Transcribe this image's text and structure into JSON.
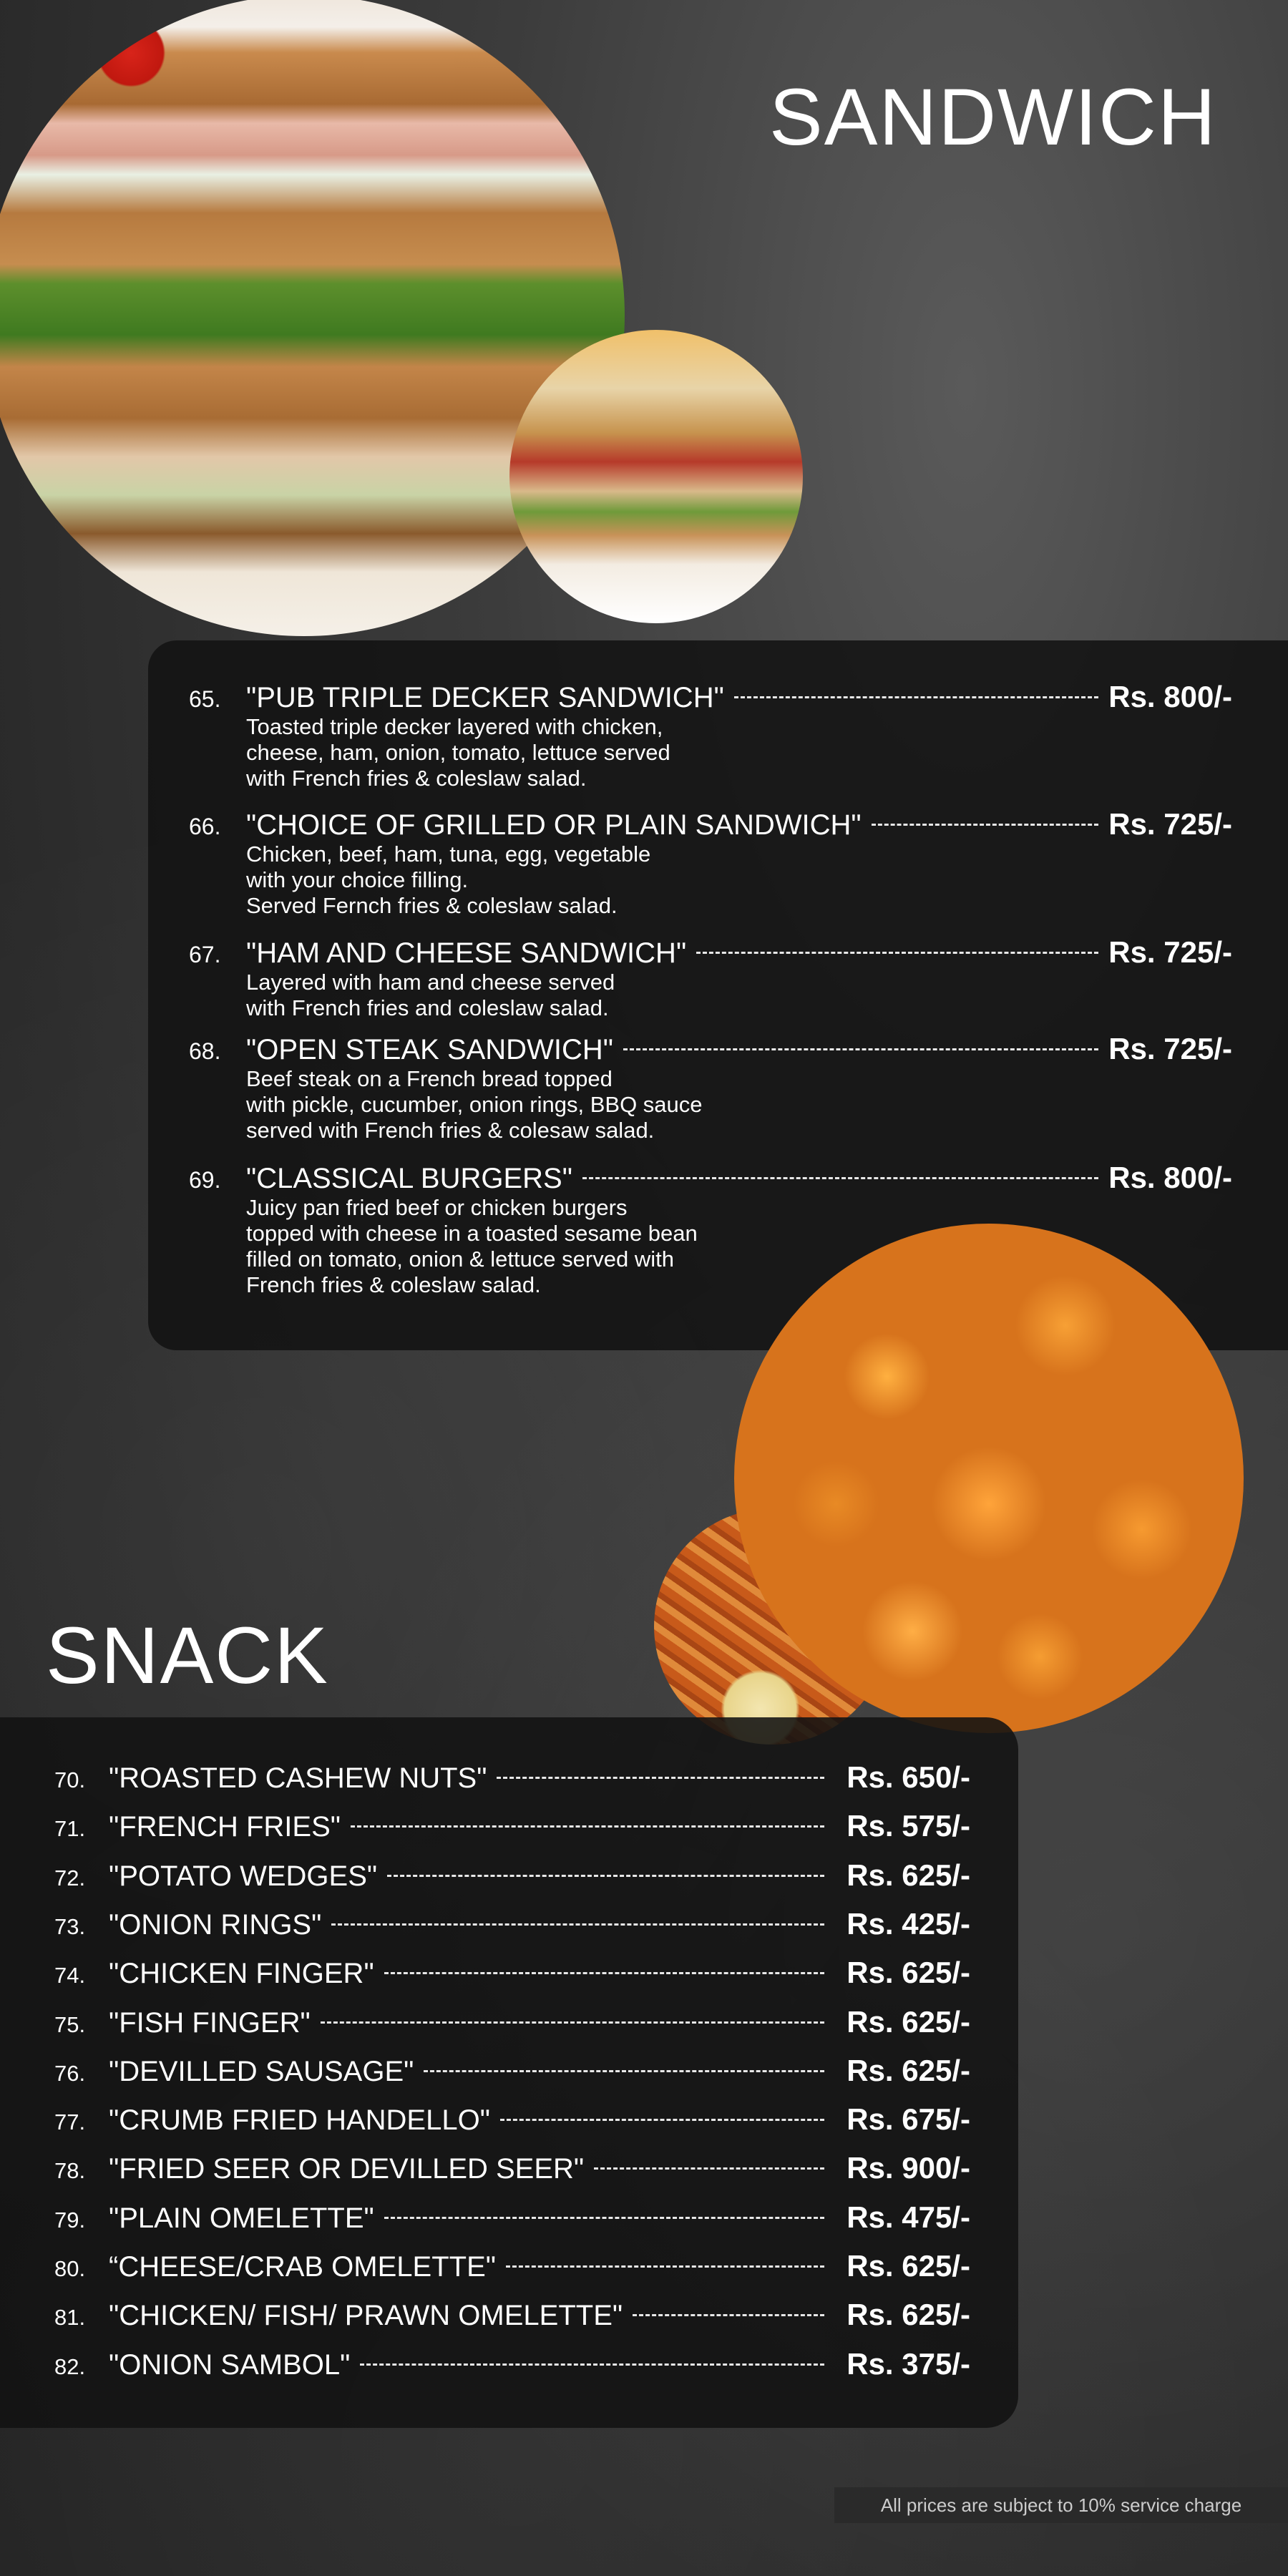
{
  "sandwich": {
    "title": "SANDWICH",
    "items": [
      {
        "num": "65.",
        "name": "\"PUB TRIPLE DECKER SANDWICH\"",
        "price": "Rs. 800/-",
        "desc": "Toasted triple decker layered with chicken,\ncheese, ham, onion, tomato, lettuce served\nwith French fries & coleslaw salad."
      },
      {
        "num": "66.",
        "name": "\"CHOICE OF GRILLED OR PLAIN SANDWICH\"",
        "price": "Rs. 725/-",
        "desc": "Chicken, beef, ham, tuna, egg, vegetable\nwith your choice filling.\nServed Fernch fries & coleslaw salad."
      },
      {
        "num": "67.",
        "name": "\"HAM AND CHEESE SANDWICH\"",
        "price": "Rs. 725/-",
        "desc": "Layered with ham and cheese served\nwith French fries and coleslaw salad."
      },
      {
        "num": "68.",
        "name": "\"OPEN STEAK SANDWICH\"",
        "price": "Rs. 725/-",
        "desc": "Beef steak on a French bread topped\nwith pickle, cucumber, onion rings, BBQ sauce\nserved with French fries & colesaw salad."
      },
      {
        "num": "69.",
        "name": "\"CLASSICAL BURGERS\"",
        "price": "Rs. 800/-",
        "desc": "Juicy pan fried beef or chicken burgers\ntopped with cheese in a toasted sesame bean\nfilled on tomato, onion & lettuce served with\nFrench fries & coleslaw salad."
      }
    ]
  },
  "snack": {
    "title": "SNACK",
    "items": [
      {
        "num": "70.",
        "name": "\"ROASTED CASHEW NUTS\"",
        "price": "Rs. 650/-"
      },
      {
        "num": "71.",
        "name": "\"FRENCH FRIES\"",
        "price": "Rs. 575/-"
      },
      {
        "num": "72.",
        "name": "\"POTATO WEDGES\"",
        "price": "Rs. 625/-"
      },
      {
        "num": "73.",
        "name": "\"ONION RINGS\"",
        "price": "Rs. 425/-"
      },
      {
        "num": "74.",
        "name": "\"CHICKEN FINGER\"",
        "price": "Rs. 625/-"
      },
      {
        "num": "75.",
        "name": "\"FISH FINGER\"",
        "price": "Rs. 625/-"
      },
      {
        "num": "76.",
        "name": "\"DEVILLED SAUSAGE\"",
        "price": "Rs. 625/-"
      },
      {
        "num": "77.",
        "name": "\"CRUMB FRIED HANDELLO\"",
        "price": "Rs. 675/-"
      },
      {
        "num": "78.",
        "name": "\"FRIED SEER OR DEVILLED SEER\"",
        "price": "Rs. 900/-"
      },
      {
        "num": "79.",
        "name": "\"PLAIN OMELETTE\"",
        "price": "Rs. 475/-"
      },
      {
        "num": "80.",
        "name": "“CHEESE/CRAB OMELETTE\"",
        "price": "Rs. 625/-"
      },
      {
        "num": "81.",
        "name": "\"CHICKEN/ FISH/ PRAWN OMELETTE\"",
        "price": "Rs. 625/-"
      },
      {
        "num": "82.",
        "name": "\"ONION SAMBOL\"",
        "price": "Rs. 375/-"
      }
    ]
  },
  "footer": {
    "note": "All prices are subject to 10% service charge"
  },
  "images": [
    "triple-decker-sandwich-photo",
    "club-sandwich-photo",
    "cheese-popcorn-photo",
    "sweet-potato-fries-photo"
  ]
}
